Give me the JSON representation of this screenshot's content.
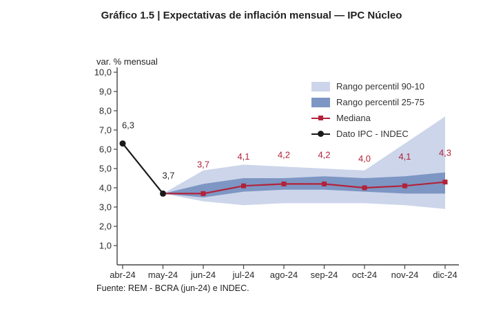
{
  "title": "Gráfico 1.5 | Expectativas de inflación mensual — IPC Núcleo",
  "axis_unit_label": "var. % mensual",
  "source": "Fuente: REM - BCRA (jun-24) e INDEC.",
  "colors": {
    "band_90_10": "#ccd5ea",
    "band_25_75": "#7e96c3",
    "median": "#b22239",
    "ipc": "#1a1a1a"
  },
  "legend": {
    "items": [
      {
        "label": "Rango percentil 90-10"
      },
      {
        "label": "Rango percentil 25-75"
      },
      {
        "label": "Mediana"
      },
      {
        "label": "Dato IPC - INDEC"
      }
    ]
  },
  "chart_data": {
    "type": "line",
    "title": "Gráfico 1.5 | Expectativas de inflación mensual — IPC Núcleo",
    "ylabel": "var. % mensual",
    "xlabel": "",
    "ylim": [
      1.0,
      10.0
    ],
    "grid": false,
    "legend_position": "top-right",
    "categories": [
      "abr-24",
      "may-24",
      "jun-24",
      "jul-24",
      "ago-24",
      "sep-24",
      "oct-24",
      "nov-24",
      "dic-24"
    ],
    "ytick_values": [
      10,
      9,
      8,
      7,
      6,
      5,
      4,
      3,
      2,
      1
    ],
    "ytick_labels": [
      "10,0",
      "9,0",
      "8,0",
      "7,0",
      "6,0",
      "5,0",
      "4,0",
      "3,0",
      "2,0",
      "1,0"
    ],
    "series": [
      {
        "name": "Rango percentil 90-10",
        "type": "band",
        "x_start_index": 1,
        "upper": [
          3.7,
          4.9,
          5.2,
          5.1,
          5.0,
          4.9,
          6.3,
          7.7
        ],
        "lower": [
          3.7,
          3.3,
          3.1,
          3.2,
          3.2,
          3.2,
          3.1,
          2.9
        ],
        "color": "#ccd5ea"
      },
      {
        "name": "Rango percentil 25-75",
        "type": "band",
        "x_start_index": 1,
        "upper": [
          3.7,
          4.2,
          4.5,
          4.5,
          4.6,
          4.5,
          4.6,
          4.8
        ],
        "lower": [
          3.7,
          3.5,
          3.8,
          3.9,
          3.9,
          3.8,
          3.7,
          3.7
        ],
        "color": "#7e96c3"
      },
      {
        "name": "Mediana",
        "type": "line",
        "marker": "square",
        "x_start_index": 1,
        "values": [
          3.7,
          3.7,
          4.1,
          4.2,
          4.2,
          4.0,
          4.1,
          4.3
        ],
        "labels": [
          null,
          "3,7",
          "4,1",
          "4,2",
          "4,2",
          "4,0",
          "4,1",
          "4,3"
        ],
        "label_dy": -38,
        "label_dx": 0,
        "color": "#b22239",
        "label_color": "#b22239"
      },
      {
        "name": "Dato IPC - INDEC",
        "type": "line",
        "marker": "circle",
        "x_start_index": 0,
        "values": [
          6.3,
          3.7
        ],
        "labels": [
          "6,3",
          "3,7"
        ],
        "label_dy": -22,
        "label_dx": 8,
        "color": "#1a1a1a",
        "label_color": "#2a2a2a"
      }
    ]
  }
}
